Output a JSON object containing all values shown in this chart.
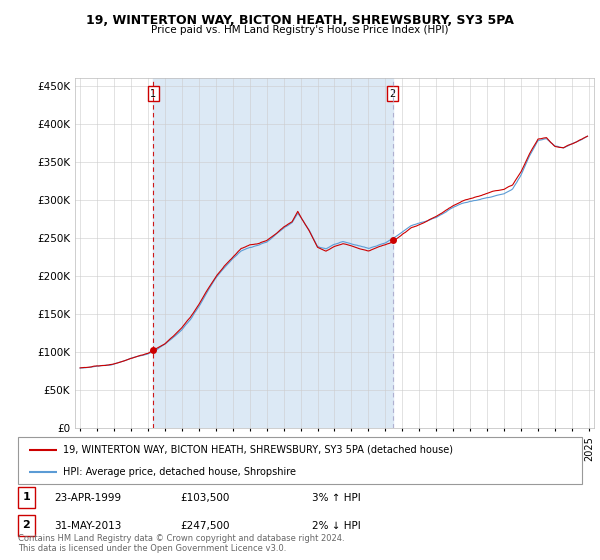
{
  "title": "19, WINTERTON WAY, BICTON HEATH, SHREWSBURY, SY3 5PA",
  "subtitle": "Price paid vs. HM Land Registry's House Price Index (HPI)",
  "legend_line1": "19, WINTERTON WAY, BICTON HEATH, SHREWSBURY, SY3 5PA (detached house)",
  "legend_line2": "HPI: Average price, detached house, Shropshire",
  "footnote": "Contains HM Land Registry data © Crown copyright and database right 2024.\nThis data is licensed under the Open Government Licence v3.0.",
  "annotation1_date": "23-APR-1999",
  "annotation1_price": "£103,500",
  "annotation1_hpi": "3% ↑ HPI",
  "annotation2_date": "31-MAY-2013",
  "annotation2_price": "£247,500",
  "annotation2_hpi": "2% ↓ HPI",
  "sale1_x": 1999.31,
  "sale1_y": 103500,
  "sale2_x": 2013.42,
  "sale2_y": 247500,
  "red_color": "#cc0000",
  "blue_color": "#5b9bd5",
  "shade_color": "#dce9f5",
  "background_color": "#ffffff",
  "grid_color": "#cccccc",
  "ylim": [
    0,
    460000
  ],
  "xlim": [
    1994.7,
    2025.3
  ]
}
